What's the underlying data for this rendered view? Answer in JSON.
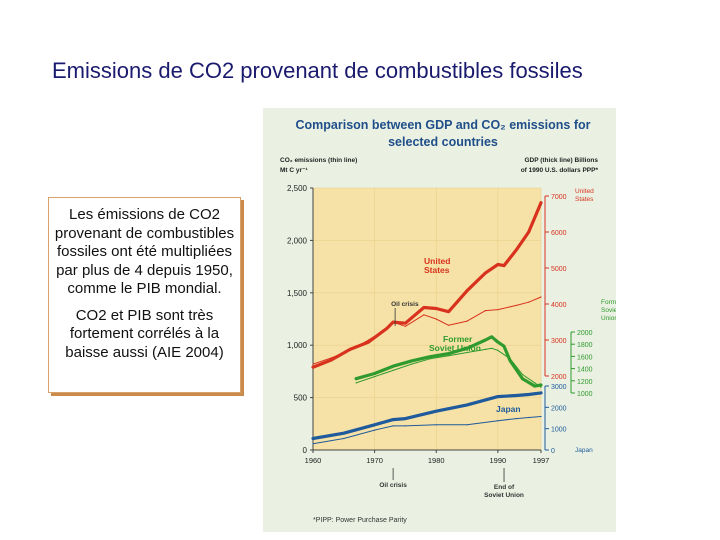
{
  "slide": {
    "title": "Emissions de CO2 provenant de combustibles fossiles",
    "paragraph1": "Les émissions de CO2 provenant de combustibles fossiles ont été multipliées par plus de 4 depuis 1950, comme le PIB mondial.",
    "paragraph2": "CO2 et PIB sont très fortement corrélés à la baisse aussi (AIE 2004)"
  },
  "chart_data": {
    "type": "line",
    "title": "Comparison between GDP and CO₂ emissions for selected countries",
    "left_axis_label": "CO₂ emissions (thin line) Mt C yr⁻¹",
    "right_axis_label": "GDP (thick line) Billions of 1990 U.S. dollars PPP*",
    "x_ticks": [
      "1960",
      "1970",
      "1980",
      "1990",
      "1997"
    ],
    "xlim": [
      1960,
      1997
    ],
    "y_ticks": [
      "0",
      "500",
      "1,000",
      "1,500",
      "2,000",
      "2,500"
    ],
    "ylim": [
      0,
      2500
    ],
    "us_gdp_ticks": [
      "7000",
      "6000",
      "5000",
      "4000",
      "3000",
      "2000"
    ],
    "us_axis_label": "United States",
    "fsu_gdp_ticks": [
      "2000",
      "1800",
      "1600",
      "1400",
      "1200",
      "1000"
    ],
    "fsu_axis_label": "Former Soviet Union",
    "japan_gdp_ticks": [
      "3000",
      "2000",
      "1000",
      "0"
    ],
    "japan_axis_label": "Japan",
    "annotations": {
      "oil_crisis": "Oil crisis",
      "oil_crisis_bottom": "Oil crisis",
      "end_soviet": "End of Soviet Union"
    },
    "footnote": "*PIPP: Power Purchase Parity",
    "colors": {
      "us": "#d8321e",
      "fsu": "#2f9a2e",
      "japan": "#1e5a9c",
      "background": "#f6e2a6"
    },
    "series": [
      {
        "name": "United States",
        "kind": "GDP",
        "x": [
          1960,
          1963,
          1966,
          1969,
          1972,
          1973,
          1975,
          1978,
          1980,
          1982,
          1985,
          1988,
          1990,
          1991,
          1993,
          1995,
          1997
        ],
        "values": [
          790,
          860,
          960,
          1030,
          1160,
          1220,
          1210,
          1360,
          1350,
          1320,
          1520,
          1690,
          1770,
          1760,
          1910,
          2080,
          2360
        ]
      },
      {
        "name": "United States",
        "kind": "CO2",
        "x": [
          1960,
          1963,
          1966,
          1969,
          1972,
          1973,
          1975,
          1978,
          1980,
          1982,
          1985,
          1988,
          1990,
          1993,
          1995,
          1997
        ],
        "values": [
          820,
          880,
          950,
          1050,
          1160,
          1220,
          1180,
          1290,
          1250,
          1190,
          1230,
          1330,
          1340,
          1380,
          1410,
          1460
        ]
      },
      {
        "name": "Former Soviet Union",
        "kind": "GDP",
        "x": [
          1967,
          1970,
          1973,
          1976,
          1979,
          1982,
          1985,
          1988,
          1989,
          1990,
          1991,
          1992,
          1994,
          1996,
          1997
        ],
        "values": [
          680,
          730,
          800,
          850,
          890,
          920,
          970,
          1050,
          1080,
          1030,
          990,
          850,
          680,
          610,
          620
        ]
      },
      {
        "name": "Former Soviet Union",
        "kind": "CO2",
        "x": [
          1967,
          1970,
          1973,
          1976,
          1979,
          1982,
          1985,
          1988,
          1989,
          1990,
          1992,
          1994,
          1996,
          1997
        ],
        "values": [
          640,
          700,
          760,
          820,
          870,
          900,
          930,
          960,
          970,
          950,
          870,
          720,
          640,
          600
        ]
      },
      {
        "name": "Japan",
        "kind": "GDP",
        "x": [
          1960,
          1965,
          1970,
          1973,
          1975,
          1980,
          1985,
          1990,
          1993,
          1995,
          1997
        ],
        "values": [
          110,
          160,
          240,
          290,
          300,
          370,
          430,
          510,
          520,
          530,
          545
        ]
      },
      {
        "name": "Japan",
        "kind": "CO2",
        "x": [
          1960,
          1965,
          1970,
          1973,
          1975,
          1980,
          1985,
          1990,
          1993,
          1995,
          1997
        ],
        "values": [
          60,
          110,
          190,
          230,
          230,
          240,
          240,
          280,
          300,
          310,
          320
        ]
      }
    ]
  }
}
